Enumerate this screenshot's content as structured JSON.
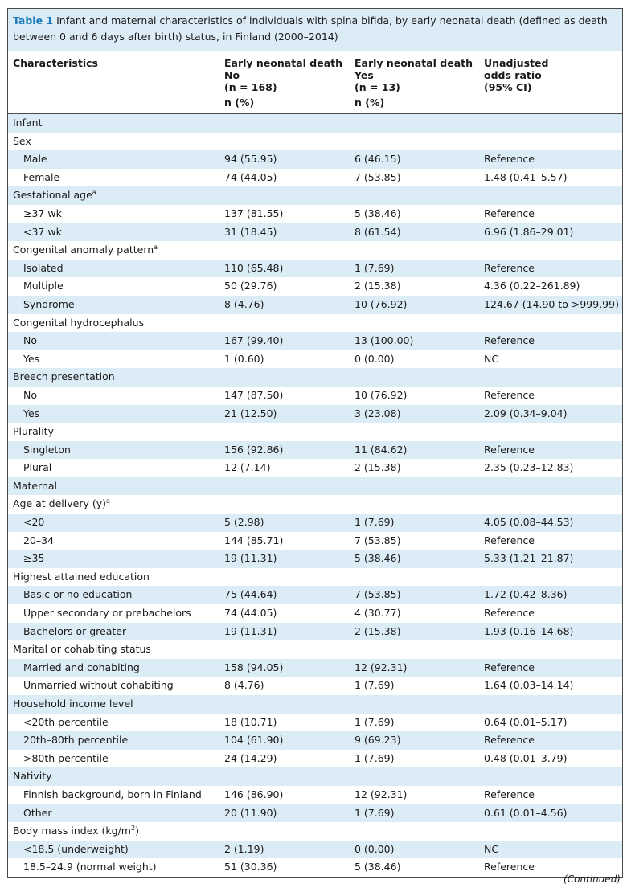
{
  "table": {
    "number": "Table 1",
    "caption": "Infant and maternal characteristics of individuals with spina bifida, by early neonatal death (defined as death between 0 and 6 days after birth) status, in Finland (2000–2014)",
    "headers": {
      "col1": "Characteristics",
      "col2_line1": "Early neonatal death",
      "col2_line2": "No",
      "col2_line3": "(n = 168)",
      "col2_line4": "n (%)",
      "col3_line1": "Early neonatal death",
      "col3_line2": "Yes",
      "col3_line3": "(n = 13)",
      "col3_line4": "n (%)",
      "col4_line1": "Unadjusted",
      "col4_line2": "odds ratio",
      "col4_line3": "(95% CI)"
    },
    "rows": [
      {
        "label": "Infant",
        "indent": false,
        "no": "",
        "yes": "",
        "or": "",
        "sup": ""
      },
      {
        "label": "Sex",
        "indent": false,
        "no": "",
        "yes": "",
        "or": "",
        "sup": ""
      },
      {
        "label": "Male",
        "indent": true,
        "no": "94 (55.95)",
        "yes": "6 (46.15)",
        "or": "Reference",
        "sup": ""
      },
      {
        "label": "Female",
        "indent": true,
        "no": "74 (44.05)",
        "yes": "7 (53.85)",
        "or": "1.48 (0.41–5.57)",
        "sup": ""
      },
      {
        "label": "Gestational age",
        "indent": false,
        "no": "",
        "yes": "",
        "or": "",
        "sup": "a"
      },
      {
        "label": "≥37 wk",
        "indent": true,
        "no": "137 (81.55)",
        "yes": "5 (38.46)",
        "or": "Reference",
        "sup": ""
      },
      {
        "label": "<37 wk",
        "indent": true,
        "no": "31 (18.45)",
        "yes": "8 (61.54)",
        "or": "6.96 (1.86–29.01)",
        "sup": ""
      },
      {
        "label": "Congenital anomaly pattern",
        "indent": false,
        "no": "",
        "yes": "",
        "or": "",
        "sup": "a"
      },
      {
        "label": "Isolated",
        "indent": true,
        "no": "110 (65.48)",
        "yes": "1 (7.69)",
        "or": "Reference",
        "sup": ""
      },
      {
        "label": "Multiple",
        "indent": true,
        "no": "50 (29.76)",
        "yes": "2 (15.38)",
        "or": "4.36 (0.22–261.89)",
        "sup": ""
      },
      {
        "label": "Syndrome",
        "indent": true,
        "no": "8 (4.76)",
        "yes": "10 (76.92)",
        "or": "124.67 (14.90 to >999.99)",
        "sup": ""
      },
      {
        "label": "Congenital hydrocephalus",
        "indent": false,
        "no": "",
        "yes": "",
        "or": "",
        "sup": ""
      },
      {
        "label": "No",
        "indent": true,
        "no": "167 (99.40)",
        "yes": "13 (100.00)",
        "or": "Reference",
        "sup": ""
      },
      {
        "label": "Yes",
        "indent": true,
        "no": "1 (0.60)",
        "yes": "0 (0.00)",
        "or": "NC",
        "sup": ""
      },
      {
        "label": "Breech presentation",
        "indent": false,
        "no": "",
        "yes": "",
        "or": "",
        "sup": ""
      },
      {
        "label": "No",
        "indent": true,
        "no": "147 (87.50)",
        "yes": "10 (76.92)",
        "or": "Reference",
        "sup": ""
      },
      {
        "label": "Yes",
        "indent": true,
        "no": "21 (12.50)",
        "yes": "3 (23.08)",
        "or": "2.09 (0.34–9.04)",
        "sup": ""
      },
      {
        "label": "Plurality",
        "indent": false,
        "no": "",
        "yes": "",
        "or": "",
        "sup": ""
      },
      {
        "label": "Singleton",
        "indent": true,
        "no": "156 (92.86)",
        "yes": "11 (84.62)",
        "or": "Reference",
        "sup": ""
      },
      {
        "label": "Plural",
        "indent": true,
        "no": "12 (7.14)",
        "yes": "2 (15.38)",
        "or": "2.35 (0.23–12.83)",
        "sup": ""
      },
      {
        "label": "Maternal",
        "indent": false,
        "no": "",
        "yes": "",
        "or": "",
        "sup": ""
      },
      {
        "label": "Age at delivery (y)",
        "indent": false,
        "no": "",
        "yes": "",
        "or": "",
        "sup": "a"
      },
      {
        "label": "<20",
        "indent": true,
        "no": "5 (2.98)",
        "yes": "1 (7.69)",
        "or": "4.05 (0.08–44.53)",
        "sup": ""
      },
      {
        "label": "20–34",
        "indent": true,
        "no": "144 (85.71)",
        "yes": "7 (53.85)",
        "or": "Reference",
        "sup": ""
      },
      {
        "label": "≥35",
        "indent": true,
        "no": "19 (11.31)",
        "yes": "5 (38.46)",
        "or": "5.33 (1.21–21.87)",
        "sup": ""
      },
      {
        "label": "Highest attained education",
        "indent": false,
        "no": "",
        "yes": "",
        "or": "",
        "sup": ""
      },
      {
        "label": "Basic or no education",
        "indent": true,
        "no": "75 (44.64)",
        "yes": "7 (53.85)",
        "or": "1.72 (0.42–8.36)",
        "sup": ""
      },
      {
        "label": "Upper secondary or prebachelors",
        "indent": true,
        "no": "74 (44.05)",
        "yes": "4 (30.77)",
        "or": "Reference",
        "sup": ""
      },
      {
        "label": "Bachelors or greater",
        "indent": true,
        "no": "19 (11.31)",
        "yes": "2 (15.38)",
        "or": "1.93 (0.16–14.68)",
        "sup": ""
      },
      {
        "label": "Marital or cohabiting status",
        "indent": false,
        "no": "",
        "yes": "",
        "or": "",
        "sup": ""
      },
      {
        "label": "Married and cohabiting",
        "indent": true,
        "no": "158 (94.05)",
        "yes": "12 (92.31)",
        "or": "Reference",
        "sup": ""
      },
      {
        "label": "Unmarried without cohabiting",
        "indent": true,
        "no": "8 (4.76)",
        "yes": "1 (7.69)",
        "or": "1.64 (0.03–14.14)",
        "sup": ""
      },
      {
        "label": "Household income level",
        "indent": false,
        "no": "",
        "yes": "",
        "or": "",
        "sup": ""
      },
      {
        "label": "<20th percentile",
        "indent": true,
        "no": "18 (10.71)",
        "yes": "1 (7.69)",
        "or": "0.64 (0.01–5.17)",
        "sup": ""
      },
      {
        "label": "20th–80th percentile",
        "indent": true,
        "no": "104 (61.90)",
        "yes": "9 (69.23)",
        "or": "Reference",
        "sup": ""
      },
      {
        "label": ">80th percentile",
        "indent": true,
        "no": "24 (14.29)",
        "yes": "1 (7.69)",
        "or": "0.48 (0.01–3.79)",
        "sup": ""
      },
      {
        "label": "Nativity",
        "indent": false,
        "no": "",
        "yes": "",
        "or": "",
        "sup": ""
      },
      {
        "label": "Finnish background, born in Finland",
        "indent": true,
        "no": "146 (86.90)",
        "yes": "12 (92.31)",
        "or": "Reference",
        "sup": ""
      },
      {
        "label": "Other",
        "indent": true,
        "no": "20 (11.90)",
        "yes": "1 (7.69)",
        "or": "0.61 (0.01–4.56)",
        "sup": ""
      },
      {
        "label": "Body mass index (kg/m",
        "indent": false,
        "no": "",
        "yes": "",
        "or": "",
        "sup": "2",
        "suffix": ")"
      },
      {
        "label": "<18.5 (underweight)",
        "indent": true,
        "no": "2 (1.19)",
        "yes": "0 (0.00)",
        "or": "NC",
        "sup": ""
      },
      {
        "label": "18.5–24.9 (normal weight)",
        "indent": true,
        "no": "51 (30.36)",
        "yes": "5 (38.46)",
        "or": "Reference",
        "sup": ""
      }
    ],
    "continued": "(Continued)"
  },
  "colors": {
    "accent": "#1a7ab8",
    "shade": "#dcecf7"
  }
}
